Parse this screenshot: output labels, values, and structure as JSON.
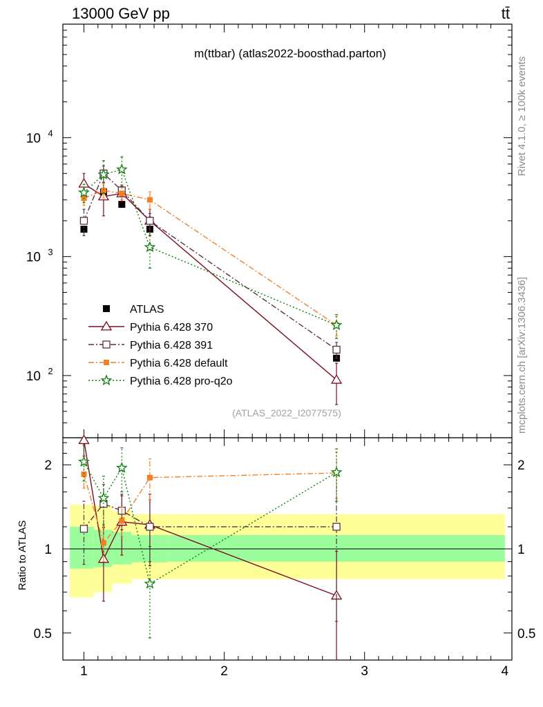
{
  "header": {
    "energy_label": "13000 GeV pp",
    "process_label": "tt̄"
  },
  "side_labels": {
    "rivet": "Rivet 4.1.0, ≥ 100k events",
    "mcplots": "mcplots.cern.ch [arXiv:1306.3436]"
  },
  "chart_data": [
    {
      "type": "scatter",
      "panel": "main",
      "title": "m(ttbar) (atlas2022-boosthad.parton)",
      "analysis_id": "(ATLAS_2022_I2077575)",
      "xlabel": "",
      "ylabel": "",
      "xlim": [
        0.85,
        4.05
      ],
      "ylim": [
        30,
        90000
      ],
      "yscale": "log",
      "ytick_labels": [
        "10^2",
        "10^3",
        "10^4"
      ],
      "legend_position": "middle-left",
      "x": [
        1.0,
        1.14,
        1.27,
        1.47,
        2.8
      ],
      "series": [
        {
          "name": "ATLAS",
          "values": [
            1700,
            3500,
            2750,
            1700,
            140
          ],
          "yerr": [
            0,
            0,
            0,
            0,
            0
          ],
          "color": "#000000",
          "marker": "filled-square",
          "line": "none"
        },
        {
          "name": "Pythia 6.428 370",
          "values": [
            4100,
            3200,
            3400,
            2000,
            92
          ],
          "yerr": [
            900,
            1000,
            500,
            500,
            35
          ],
          "color": "#7d0c1e",
          "marker": "open-triangle",
          "line": "solid"
        },
        {
          "name": "Pythia 6.428 391",
          "values": [
            2000,
            5000,
            3600,
            2000,
            165
          ],
          "yerr": [
            500,
            800,
            400,
            300,
            25
          ],
          "color": "#5c2f42",
          "marker": "open-square",
          "line": "dashdot"
        },
        {
          "name": "Pythia 6.428 default",
          "values": [
            3100,
            3600,
            3400,
            3000,
            265
          ],
          "yerr": [
            400,
            500,
            400,
            500,
            50
          ],
          "color": "#f57f24",
          "marker": "filled-square-small",
          "line": "dashdot"
        },
        {
          "name": "Pythia 6.428 pro-q2o",
          "values": [
            3450,
            4900,
            5400,
            1200,
            265
          ],
          "yerr": [
            600,
            1500,
            1500,
            400,
            60
          ],
          "color": "#0a7d0a",
          "marker": "star",
          "line": "dotted"
        }
      ]
    },
    {
      "type": "scatter",
      "panel": "ratio",
      "title": "",
      "xlabel": "",
      "ylabel": "Ratio to ATLAS",
      "xlim": [
        0.85,
        4.05
      ],
      "ylim": [
        0.4,
        2.5
      ],
      "yscale": "log",
      "ytick_labels": [
        "0.5",
        "1",
        "2"
      ],
      "xtick_labels": [
        "1",
        "2",
        "3",
        "4"
      ],
      "uncertainty_bands": {
        "edges": [
          0.9,
          1.07,
          1.2,
          1.34,
          1.6,
          4.0
        ],
        "inner": [
          [
            0.85,
            1.2
          ],
          [
            0.86,
            1.17
          ],
          [
            0.88,
            1.15
          ],
          [
            0.895,
            1.12
          ],
          [
            0.9,
            1.12
          ]
        ],
        "outer": [
          [
            0.67,
            1.44
          ],
          [
            0.7,
            1.43
          ],
          [
            0.75,
            1.37
          ],
          [
            0.78,
            1.33
          ],
          [
            0.78,
            1.33
          ]
        ],
        "inner_color": "#9cfd9c",
        "outer_color": "#ffff99"
      },
      "x": [
        1.0,
        1.14,
        1.27,
        1.47,
        2.8
      ],
      "series": [
        {
          "name": "Pythia 6.428 370",
          "values": [
            2.45,
            0.92,
            1.25,
            1.22,
            0.68
          ],
          "yerr": [
            0.3,
            0.27,
            0.3,
            0.35,
            0.3
          ],
          "color": "#7d0c1e",
          "marker": "open-triangle",
          "line": "solid"
        },
        {
          "name": "Pythia 6.428 391",
          "values": [
            1.18,
            1.45,
            1.37,
            1.2,
            1.2
          ],
          "yerr": [
            0.3,
            0.25,
            0.2,
            0.3,
            0.65
          ],
          "color": "#5c2f42",
          "marker": "open-square",
          "line": "dashdot"
        },
        {
          "name": "Pythia 6.428 default",
          "values": [
            1.85,
            1.05,
            1.26,
            1.8,
            1.87
          ],
          "yerr": [
            0.2,
            0.15,
            0.15,
            0.3,
            0.35
          ],
          "color": "#f57f24",
          "marker": "filled-square-small",
          "line": "dashdot"
        },
        {
          "name": "Pythia 6.428 pro-q2o",
          "values": [
            2.05,
            1.52,
            1.95,
            0.75,
            1.88
          ],
          "yerr": [
            0.3,
            0.3,
            0.35,
            0.27,
            0.4
          ],
          "color": "#0a7d0a",
          "marker": "star",
          "line": "dotted"
        }
      ]
    }
  ]
}
